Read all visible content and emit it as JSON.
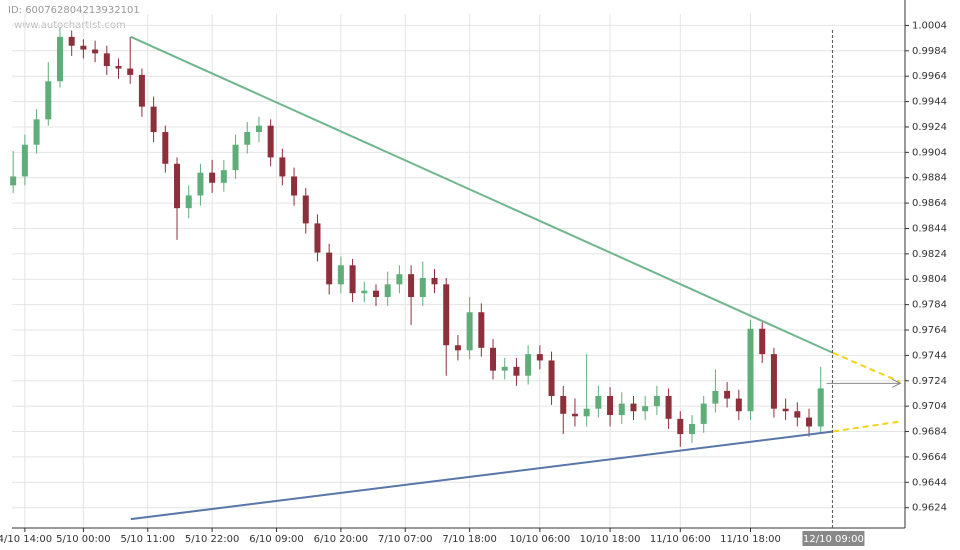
{
  "chart_data": {
    "type": "candlestick",
    "id_text": "ID: 600762804213932101",
    "watermark": "www.autochartist.com",
    "xlim": [
      -2.2,
      150.4
    ],
    "ylim": [
      0.9608,
      1.0013
    ],
    "yticks": [
      1.0004,
      0.9984,
      0.9964,
      0.9944,
      0.9924,
      0.9904,
      0.9884,
      0.9864,
      0.9844,
      0.9824,
      0.9804,
      0.9784,
      0.9764,
      0.9744,
      0.9724,
      0.9704,
      0.9684,
      0.9664,
      0.9644,
      0.9624
    ],
    "xticks": [
      {
        "value": 0,
        "label": "4/10 14:00"
      },
      {
        "value": 10,
        "label": "5/10 00:00"
      },
      {
        "value": 21,
        "label": "5/10 11:00"
      },
      {
        "value": 32,
        "label": "5/10 22:00"
      },
      {
        "value": 43,
        "label": "6/10 09:00"
      },
      {
        "value": 54,
        "label": "6/10 20:00"
      },
      {
        "value": 65,
        "label": "7/10 07:00"
      },
      {
        "value": 76,
        "label": "7/10 18:00"
      },
      {
        "value": 88,
        "label": "10/10 06:00"
      },
      {
        "value": 100,
        "label": "10/10 18:00"
      },
      {
        "value": 112,
        "label": "11/10 06:00"
      },
      {
        "value": 124,
        "label": "11/10 18:00"
      }
    ],
    "grid": true,
    "up_color": "#5fae7a",
    "down_color": "#8e2f3c",
    "x": [
      -2,
      0,
      2,
      4,
      6,
      8,
      10,
      12,
      14,
      16,
      18,
      20,
      22,
      24,
      26,
      28,
      30,
      32,
      34,
      36,
      38,
      40,
      42,
      44,
      46,
      48,
      50,
      52,
      54,
      56,
      58,
      60,
      62,
      64,
      66,
      68,
      70,
      72,
      74,
      76,
      78,
      80,
      82,
      84,
      86,
      88,
      90,
      92,
      94,
      96,
      98,
      100,
      102,
      104,
      106,
      108,
      110,
      112,
      114,
      116,
      118,
      120,
      122,
      124,
      126,
      128,
      130,
      132,
      134,
      136
    ],
    "open": [
      0.9878,
      0.9885,
      0.991,
      0.993,
      0.996,
      0.9995,
      0.9988,
      0.9985,
      0.9982,
      0.9972,
      0.997,
      0.9965,
      0.994,
      0.992,
      0.9895,
      0.986,
      0.987,
      0.9888,
      0.988,
      0.989,
      0.991,
      0.992,
      0.9925,
      0.99,
      0.9885,
      0.987,
      0.9848,
      0.9825,
      0.98,
      0.9815,
      0.9793,
      0.9795,
      0.979,
      0.98,
      0.9808,
      0.979,
      0.9805,
      0.98,
      0.9752,
      0.9748,
      0.9778,
      0.975,
      0.9732,
      0.9735,
      0.9728,
      0.9745,
      0.974,
      0.9712,
      0.9698,
      0.9696,
      0.9702,
      0.9712,
      0.9697,
      0.9706,
      0.97,
      0.9704,
      0.9712,
      0.9694,
      0.9682,
      0.969,
      0.9706,
      0.9716,
      0.971,
      0.97,
      0.9765,
      0.9745,
      0.9702,
      0.97,
      0.9695,
      0.9688
    ],
    "high": [
      0.9905,
      0.9918,
      0.9938,
      0.9975,
      1.0002,
      1.0,
      0.9993,
      0.9992,
      0.9988,
      0.9978,
      0.9995,
      0.997,
      0.9948,
      0.9925,
      0.99,
      0.9878,
      0.9895,
      0.9898,
      0.9898,
      0.9918,
      0.9928,
      0.9932,
      0.993,
      0.9907,
      0.9892,
      0.9876,
      0.9855,
      0.9832,
      0.9822,
      0.982,
      0.9802,
      0.98,
      0.981,
      0.9815,
      0.9815,
      0.9818,
      0.9812,
      0.9805,
      0.976,
      0.979,
      0.9785,
      0.9757,
      0.9742,
      0.9742,
      0.9752,
      0.9752,
      0.9747,
      0.972,
      0.971,
      0.9745,
      0.972,
      0.9719,
      0.9715,
      0.9712,
      0.9712,
      0.972,
      0.9718,
      0.97,
      0.9697,
      0.9712,
      0.9733,
      0.9723,
      0.9717,
      0.9772,
      0.977,
      0.975,
      0.971,
      0.9707,
      0.9702,
      0.9735
    ],
    "low": [
      0.9872,
      0.9878,
      0.9903,
      0.9925,
      0.9955,
      0.998,
      0.9978,
      0.9975,
      0.9965,
      0.9962,
      0.9958,
      0.9932,
      0.9912,
      0.9888,
      0.9835,
      0.9852,
      0.9862,
      0.9872,
      0.9873,
      0.9883,
      0.9903,
      0.9912,
      0.9893,
      0.9878,
      0.9862,
      0.984,
      0.9818,
      0.9792,
      0.9793,
      0.9786,
      0.9786,
      0.9783,
      0.9783,
      0.9793,
      0.9768,
      0.9783,
      0.9793,
      0.9728,
      0.974,
      0.9741,
      0.9743,
      0.9725,
      0.9725,
      0.972,
      0.9721,
      0.9733,
      0.9705,
      0.9682,
      0.9688,
      0.9688,
      0.9695,
      0.9688,
      0.969,
      0.9693,
      0.9693,
      0.9697,
      0.9686,
      0.9672,
      0.9675,
      0.9683,
      0.9699,
      0.9703,
      0.9693,
      0.9693,
      0.9738,
      0.9695,
      0.9693,
      0.9688,
      0.968,
      0.9683
    ],
    "close": [
      0.9885,
      0.991,
      0.993,
      0.996,
      0.9995,
      0.9988,
      0.9985,
      0.9982,
      0.9972,
      0.997,
      0.9965,
      0.994,
      0.992,
      0.9895,
      0.986,
      0.987,
      0.9888,
      0.988,
      0.989,
      0.991,
      0.992,
      0.9925,
      0.99,
      0.9885,
      0.987,
      0.9848,
      0.9825,
      0.98,
      0.9815,
      0.9793,
      0.9795,
      0.979,
      0.98,
      0.9808,
      0.979,
      0.9805,
      0.98,
      0.9752,
      0.9748,
      0.9778,
      0.975,
      0.9732,
      0.9735,
      0.9728,
      0.9745,
      0.974,
      0.9712,
      0.9698,
      0.9696,
      0.9702,
      0.9712,
      0.9697,
      0.9706,
      0.97,
      0.9704,
      0.9712,
      0.9694,
      0.9682,
      0.969,
      0.9706,
      0.9716,
      0.971,
      0.97,
      0.9765,
      0.9745,
      0.9702,
      0.97,
      0.9695,
      0.9688,
      0.9718
    ],
    "trendlines": [
      {
        "color": "#6fb58d",
        "x": [
          18.1,
          138.1
        ],
        "y": [
          0.9995,
          0.9746
        ]
      },
      {
        "color": "#5577aa",
        "x": [
          18.1,
          138.1
        ],
        "y": [
          0.9615,
          0.9684
        ]
      }
    ],
    "projections": [
      {
        "color": "#f3d31a",
        "x": [
          138.1,
          149.6
        ],
        "y": [
          0.9746,
          0.9723
        ]
      },
      {
        "color": "#f3d31a",
        "x": [
          138.1,
          149.6
        ],
        "y": [
          0.9684,
          0.9692
        ]
      }
    ],
    "last_price": {
      "x": [
        137,
        149.6
      ],
      "y": 0.9722,
      "color": "#888888"
    },
    "cursor": {
      "x": 138,
      "label": "12/10 09:00"
    }
  }
}
